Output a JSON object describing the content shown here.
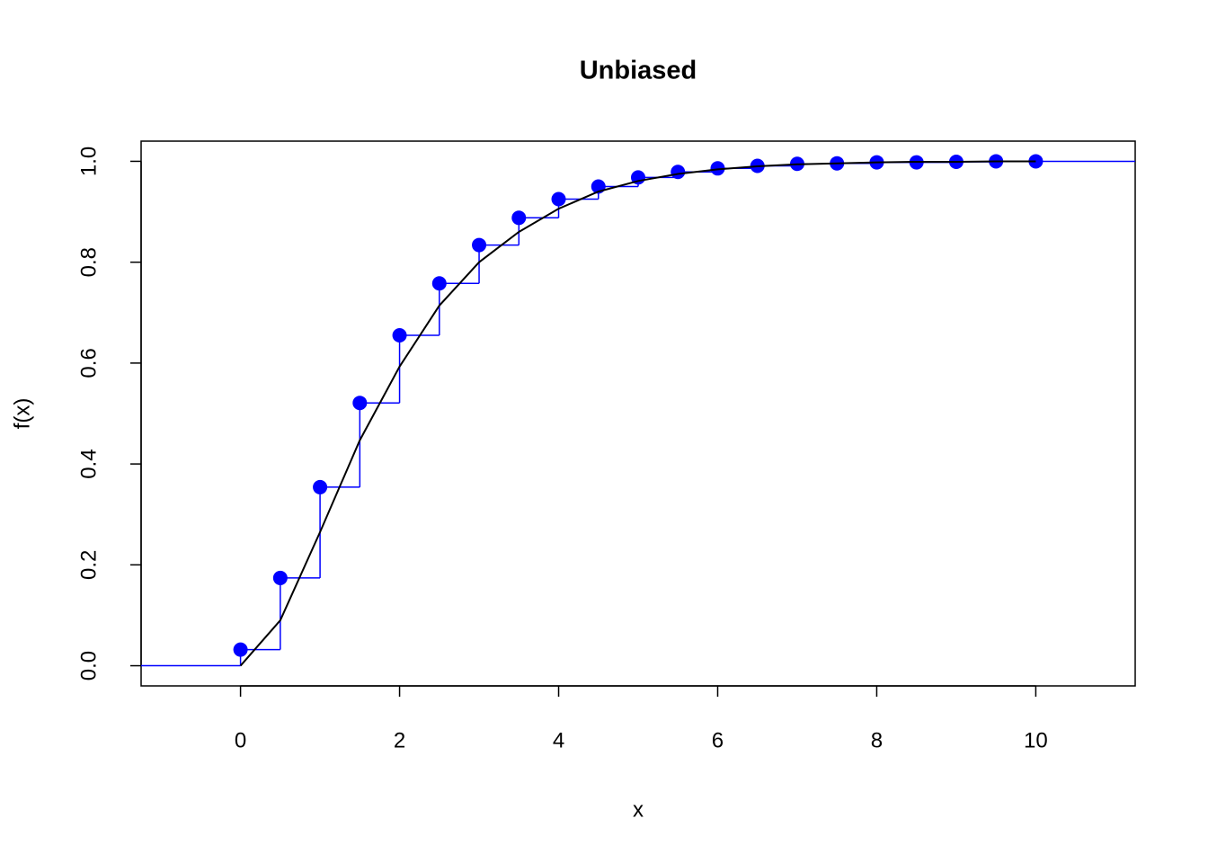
{
  "chart_data": {
    "type": "line",
    "title": "Unbiased",
    "x_label": "x",
    "y_label": "f(x)",
    "xlim": [
      -1.25,
      11.25
    ],
    "ylim": [
      -0.04,
      1.04
    ],
    "xticks": [
      0,
      2,
      4,
      6,
      8,
      10
    ],
    "yticks": [
      {
        "value": 0,
        "label": "0.0"
      },
      0.2,
      0.4,
      0.6,
      0.8,
      {
        "value": 1,
        "label": "1.0"
      }
    ],
    "x": [
      0,
      0.5,
      1,
      1.5,
      2,
      2.5,
      3,
      3.5,
      4,
      4.5,
      5,
      5.5,
      6,
      6.5,
      7,
      7.5,
      8,
      8.5,
      9,
      9.5,
      10
    ],
    "series": [
      {
        "style": "step",
        "color": "#0000ff",
        "initial_value": 0,
        "values": [
          0.032,
          0.174,
          0.354,
          0.521,
          0.655,
          0.758,
          0.834,
          0.888,
          0.925,
          0.95,
          0.968,
          0.979,
          0.986,
          0.991,
          0.995,
          0.996,
          0.998,
          0.998,
          0.999,
          1.0,
          1.0
        ]
      },
      {
        "style": "points",
        "color": "#0000ff",
        "values": [
          0.032,
          0.174,
          0.354,
          0.521,
          0.655,
          0.758,
          0.834,
          0.888,
          0.925,
          0.95,
          0.968,
          0.979,
          0.986,
          0.991,
          0.995,
          0.996,
          0.998,
          0.998,
          0.999,
          1.0,
          1.0
        ]
      },
      {
        "style": "line",
        "color": "#000000",
        "values": [
          0,
          0.09,
          0.265,
          0.447,
          0.593,
          0.714,
          0.8,
          0.86,
          0.906,
          0.94,
          0.961,
          0.975,
          0.984,
          0.99,
          0.994,
          0.996,
          0.998,
          0.999,
          0.999,
          1.0,
          1.0
        ]
      }
    ]
  }
}
